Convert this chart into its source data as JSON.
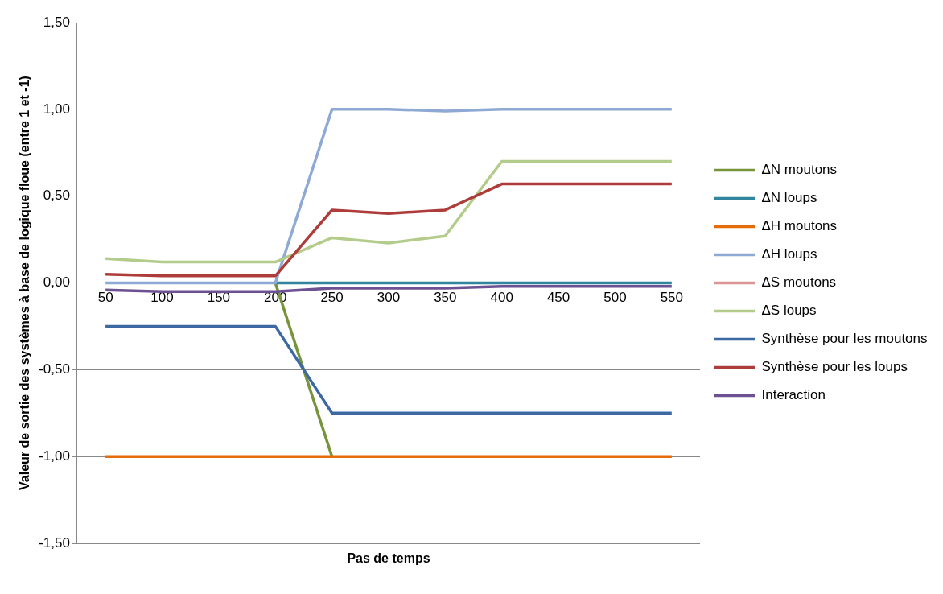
{
  "chart_data": {
    "type": "line",
    "xlabel": "Pas de temps",
    "ylabel": "Valeur de sortie des systèmes à base de logique floue (entre 1 et -1)",
    "categories": [
      "50",
      "100",
      "150",
      "200",
      "250",
      "300",
      "350",
      "400",
      "450",
      "500",
      "550"
    ],
    "ylim": [
      -1.5,
      1.5
    ],
    "yticks": [
      {
        "value": -1.5,
        "label": "-1,50"
      },
      {
        "value": -1,
        "label": "-1,00"
      },
      {
        "value": -0.5,
        "label": "-0,50"
      },
      {
        "value": 0,
        "label": "0,00"
      },
      {
        "value": 0.5,
        "label": "0,50"
      },
      {
        "value": 1,
        "label": "1,00"
      },
      {
        "value": 1.5,
        "label": "1,50"
      }
    ],
    "grid": "y",
    "legend": "right",
    "marker": "none",
    "series": [
      {
        "name": "ΔN moutons",
        "color": "#77933c",
        "values": [
          null,
          null,
          null,
          0,
          -1,
          null,
          null,
          null,
          null,
          null,
          null
        ]
      },
      {
        "name": "ΔN loups",
        "color": "#31859c",
        "values": [
          null,
          null,
          null,
          0,
          0,
          0,
          0,
          0,
          0,
          0,
          0
        ]
      },
      {
        "name": "ΔH moutons",
        "color": "#e46c0a",
        "values": [
          -1,
          -1,
          -1,
          -1,
          -1,
          -1,
          -1,
          -1,
          -1,
          -1,
          -1
        ]
      },
      {
        "name": "ΔH loups",
        "color": "#8eaad4",
        "values": [
          0,
          0,
          0,
          0,
          1,
          1,
          0.99,
          1,
          1,
          1,
          1
        ]
      },
      {
        "name": "ΔS moutons",
        "color": "#d99694",
        "values": [
          null,
          null,
          null,
          null,
          null,
          null,
          null,
          null,
          null,
          null,
          null
        ]
      },
      {
        "name": "ΔS loups",
        "color": "#b3cc8c",
        "values": [
          0.14,
          0.12,
          0.12,
          0.12,
          0.26,
          0.23,
          0.27,
          0.7,
          0.7,
          0.7,
          0.7
        ]
      },
      {
        "name": "Synthèse pour les moutons",
        "color": "#3d69a3",
        "values": [
          -0.25,
          -0.25,
          -0.25,
          -0.25,
          -0.75,
          -0.75,
          -0.75,
          -0.75,
          -0.75,
          -0.75,
          -0.75
        ]
      },
      {
        "name": "Synthèse pour les loups",
        "color": "#ad3c3a",
        "values": [
          0.05,
          0.04,
          0.04,
          0.04,
          0.42,
          0.4,
          0.42,
          0.57,
          0.57,
          0.57,
          0.57
        ]
      },
      {
        "name": "Interaction",
        "color": "#6d5193",
        "values": [
          -0.04,
          -0.05,
          -0.05,
          -0.05,
          -0.03,
          -0.03,
          -0.03,
          -0.02,
          -0.02,
          -0.02,
          -0.02
        ]
      }
    ]
  }
}
